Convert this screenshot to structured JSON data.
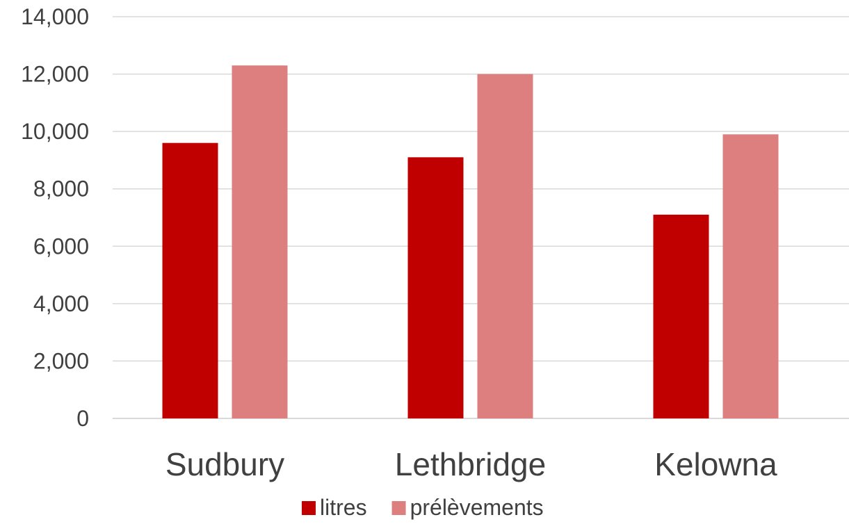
{
  "chart_data": {
    "type": "bar",
    "title": "",
    "xlabel": "",
    "ylabel": "",
    "categories": [
      "Sudbury",
      "Lethbridge",
      "Kelowna"
    ],
    "series": [
      {
        "name": "litres",
        "color": "#c00000",
        "values": [
          9600,
          9100,
          7100
        ]
      },
      {
        "name": "prélèvements",
        "color": "#de7f7f",
        "values": [
          12300,
          12000,
          9900
        ]
      }
    ],
    "ylim": [
      0,
      14000
    ],
    "yticks": [
      0,
      2000,
      4000,
      6000,
      8000,
      10000,
      12000,
      14000
    ],
    "ytick_labels": [
      "0",
      "2,000",
      "4,000",
      "6,000",
      "8,000",
      "10,000",
      "12,000",
      "14,000"
    ],
    "grid": true,
    "legend_position": "bottom"
  }
}
